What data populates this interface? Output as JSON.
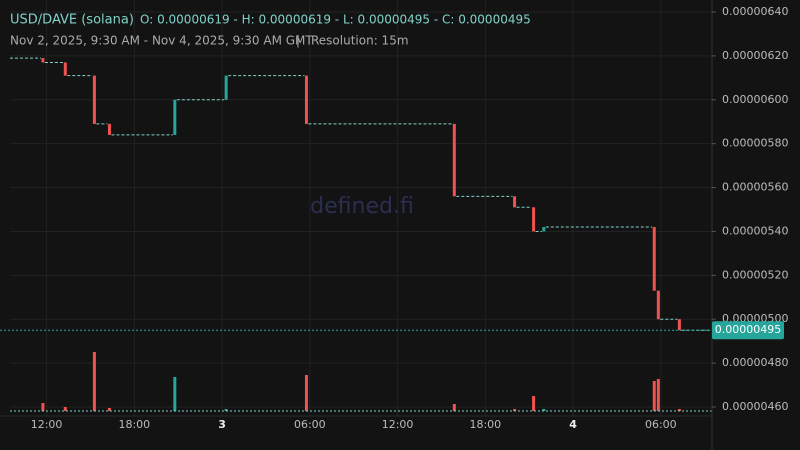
{
  "chart_data": {
    "type": "candlestick",
    "title": "USD/DAVE (solana)",
    "summary": "O: 0.00000619 - H: 0.00000619 - L: 0.00000495 - C: 0.00000495",
    "subtitle": "Nov 2, 2025, 9:30 AM - Nov 4, 2025, 9:30 AM GMT",
    "separator": "|",
    "resolution": "Resolution: 15m",
    "watermark": "defined.fi",
    "up_color": "#26a69a",
    "down_color": "#ef5350",
    "start_open": 6.19e-06,
    "x": [
      2.25,
      3.78,
      5.77,
      6.8,
      11.27,
      14.78,
      20.27,
      30.38,
      34.5,
      35.8,
      36.5,
      44.05,
      44.33,
      45.77
    ],
    "open": [
      6.19e-06,
      6.17e-06,
      6.11e-06,
      5.89e-06,
      5.84e-06,
      6e-06,
      6.11e-06,
      5.89e-06,
      5.56e-06,
      5.51e-06,
      5.4e-06,
      5.42e-06,
      5.13e-06,
      5e-06
    ],
    "high": [
      6.19e-06,
      6.17e-06,
      6.11e-06,
      5.89e-06,
      6e-06,
      6.11e-06,
      6.11e-06,
      5.89e-06,
      5.56e-06,
      5.51e-06,
      5.42e-06,
      5.42e-06,
      5.13e-06,
      5e-06
    ],
    "low": [
      6.17e-06,
      6.11e-06,
      5.89e-06,
      5.84e-06,
      5.84e-06,
      6e-06,
      5.89e-06,
      5.56e-06,
      5.51e-06,
      5.4e-06,
      5.4e-06,
      5.13e-06,
      5e-06,
      4.95e-06
    ],
    "close": [
      6.17e-06,
      6.11e-06,
      5.89e-06,
      5.84e-06,
      6e-06,
      6.11e-06,
      5.89e-06,
      5.56e-06,
      5.51e-06,
      5.4e-06,
      5.42e-06,
      5.13e-06,
      5e-06,
      4.95e-06
    ],
    "volume": [
      8,
      4,
      59,
      3,
      34,
      2,
      36,
      7,
      2,
      15,
      2,
      30,
      32,
      2
    ],
    "vlim": [
      0,
      100
    ],
    "last_price": {
      "value": 4.95e-06,
      "label": "0.00000495"
    },
    "xlim": [
      0,
      48
    ],
    "xticks": [
      {
        "value": 2.5,
        "label": "12:00"
      },
      {
        "value": 8.5,
        "label": "18:00"
      },
      {
        "value": 14.5,
        "label": "3"
      },
      {
        "value": 20.5,
        "label": "06:00"
      },
      {
        "value": 26.5,
        "label": "12:00"
      },
      {
        "value": 32.5,
        "label": "18:00"
      },
      {
        "value": 38.5,
        "label": "4"
      },
      {
        "value": 44.5,
        "label": "06:00"
      }
    ],
    "ylim": [
      4.6e-06,
      6.4e-06
    ],
    "yticks": [
      {
        "value": 4.6e-06,
        "label": "0.00000460"
      },
      {
        "value": 4.8e-06,
        "label": "0.00000480"
      },
      {
        "value": 5e-06,
        "label": "0.00000500"
      },
      {
        "value": 5.2e-06,
        "label": "0.00000520"
      },
      {
        "value": 5.4e-06,
        "label": "0.00000540"
      },
      {
        "value": 5.6e-06,
        "label": "0.00000560"
      },
      {
        "value": 5.8e-06,
        "label": "0.00000580"
      },
      {
        "value": 6e-06,
        "label": "0.00000600"
      },
      {
        "value": 6.2e-06,
        "label": "0.00000620"
      },
      {
        "value": 6.4e-06,
        "label": "0.00000640"
      }
    ],
    "grid": true
  }
}
